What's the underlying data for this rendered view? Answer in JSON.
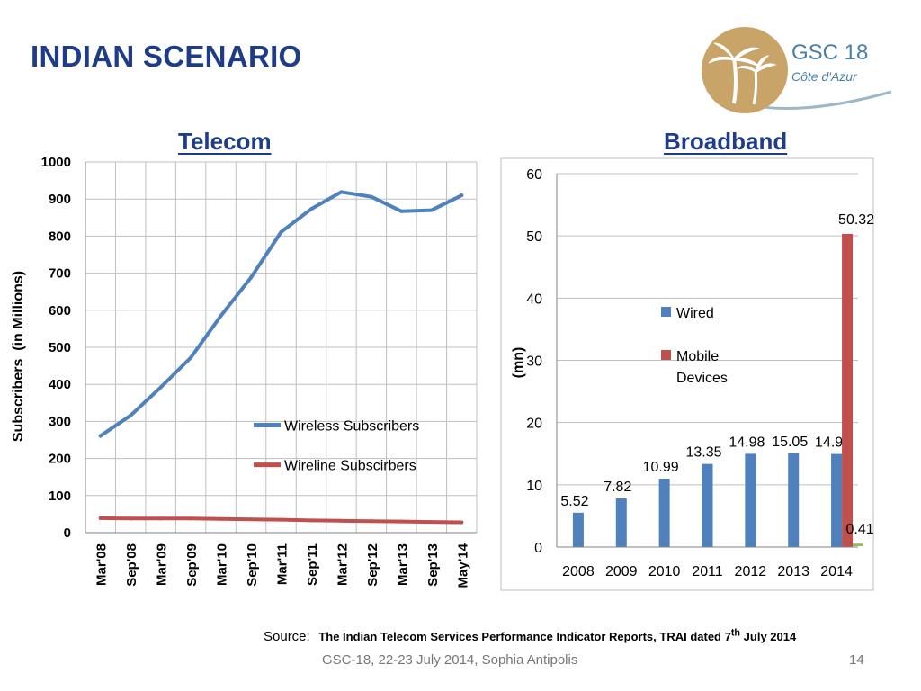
{
  "slide": {
    "title": "INDIAN SCENARIO",
    "logo_text_1": "GSC 18",
    "logo_text_2": "Côte d'Azur",
    "source_label": "Source:",
    "source_text_a": "The Indian Telecom Services Performance Indicator Reports, TRAI dated 7",
    "source_sup": "th",
    "source_text_b": " July 2014",
    "footer": "GSC-18, 22-23 July 2014, Sophia Antipolis",
    "page_number": "14"
  },
  "colors": {
    "title": "#1f3c88",
    "wireless": "#4f81bd",
    "wireline": "#c0504d",
    "wired_bar": "#4f81bd",
    "mobile_bar": "#c0504d",
    "small_bar": "#9bbb59"
  },
  "chart_data": [
    {
      "type": "line",
      "title": "Telecom",
      "xlabel": "",
      "ylabel": "Subscribers  (in Millions)",
      "ylim": [
        0,
        1000
      ],
      "yticks": [
        0,
        100,
        200,
        300,
        400,
        500,
        600,
        700,
        800,
        900,
        1000
      ],
      "grid": true,
      "legend_position": "center-right",
      "categories": [
        "Mar'08",
        "Sep'08",
        "Mar'09",
        "Sep'09",
        "Mar'10",
        "Sep'10",
        "Mar'11",
        "Sep'11",
        "Mar'12",
        "Sep'12",
        "Mar'13",
        "Sep'13",
        "May'14"
      ],
      "series": [
        {
          "name": "Wireless Subscribers",
          "values": [
            261,
            316,
            392,
            472,
            585,
            688,
            811,
            873,
            919,
            906,
            867,
            870,
            910
          ]
        },
        {
          "name": "Wireline Subscirbers",
          "values": [
            39,
            38,
            38,
            38,
            37,
            36,
            35,
            33,
            32,
            31,
            30,
            29,
            28
          ]
        }
      ]
    },
    {
      "type": "bar",
      "title": "Broadband",
      "xlabel": "",
      "ylabel": "(mn)",
      "ylim": [
        0,
        60
      ],
      "yticks": [
        0,
        10,
        20,
        30,
        40,
        50,
        60
      ],
      "grid": true,
      "legend_position": "top-right",
      "categories": [
        "2008",
        "2009",
        "2010",
        "2011",
        "2012",
        "2013",
        "2014"
      ],
      "series": [
        {
          "name": "Wired",
          "values": [
            5.52,
            7.82,
            10.99,
            13.35,
            14.98,
            15.05,
            14.95
          ],
          "labels": [
            "5.52",
            "7.82",
            "10.99",
            "13.35",
            "14.98",
            "15.05",
            "14.95"
          ]
        },
        {
          "name": "Mobile Devices",
          "values": [
            null,
            null,
            null,
            null,
            null,
            null,
            50.32
          ],
          "labels": [
            "",
            "",
            "",
            "",
            "",
            "",
            "50.32"
          ]
        },
        {
          "name": "",
          "values": [
            null,
            null,
            null,
            null,
            null,
            null,
            0.41
          ],
          "labels": [
            "",
            "",
            "",
            "",
            "",
            "",
            "0.41"
          ]
        }
      ]
    }
  ]
}
